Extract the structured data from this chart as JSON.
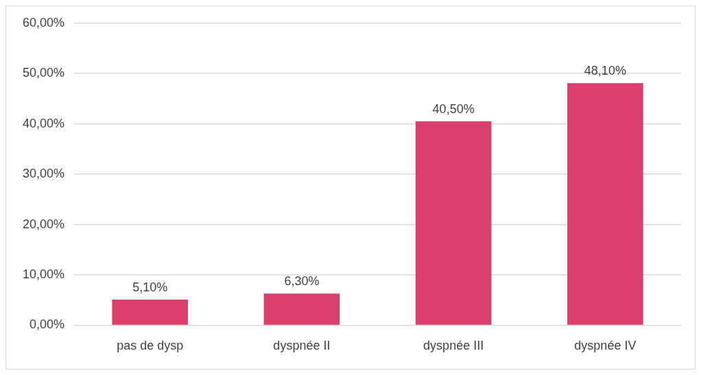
{
  "chart_data": {
    "type": "bar",
    "categories": [
      "pas de dysp",
      "dyspnée II",
      "dyspnée III",
      "dyspnée IV"
    ],
    "values": [
      5.1,
      6.3,
      40.5,
      48.1
    ],
    "value_labels": [
      "5,10%",
      "6,30%",
      "40,50%",
      "48,10%"
    ],
    "color": "#d9406c",
    "ylim": [
      0,
      60
    ],
    "yticks": [
      {
        "value": 0,
        "label": "0,00%"
      },
      {
        "value": 10,
        "label": "10,00%"
      },
      {
        "value": 20,
        "label": "20,00%"
      },
      {
        "value": 30,
        "label": "30,00%"
      },
      {
        "value": 40,
        "label": "40,00%"
      },
      {
        "value": 50,
        "label": "50,00%"
      },
      {
        "value": 60,
        "label": "60,00%"
      }
    ],
    "grid": "y",
    "legend": false
  }
}
